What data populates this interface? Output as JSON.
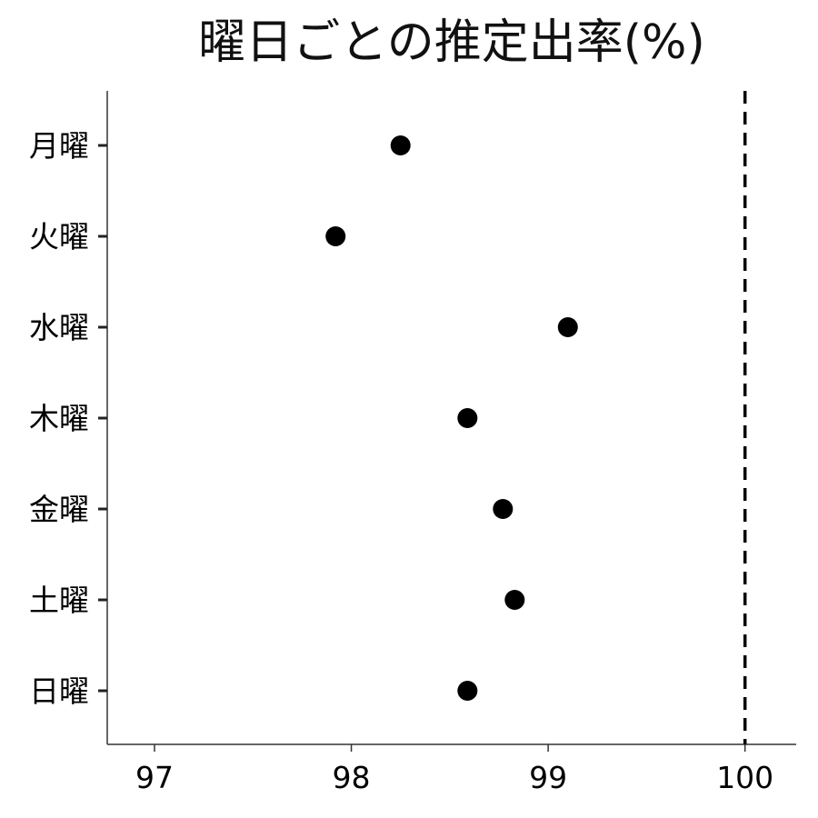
{
  "chart_data": {
    "type": "scatter",
    "title": "曜日ごとの推定出率(%)",
    "xlabel": "",
    "ylabel": "",
    "categories": [
      "月曜",
      "火曜",
      "水曜",
      "木曜",
      "金曜",
      "土曜",
      "日曜"
    ],
    "values": [
      98.25,
      97.92,
      99.1,
      98.59,
      98.77,
      98.83,
      98.59
    ],
    "xlim": [
      96.76,
      100.26
    ],
    "xticks": [
      97,
      98,
      99,
      100
    ],
    "reference_line": {
      "x": 100,
      "style": "dashed"
    },
    "grid": false,
    "legend": "none",
    "colors": {
      "point": "#000000",
      "axis": "#333333",
      "reference": "#000000"
    }
  }
}
